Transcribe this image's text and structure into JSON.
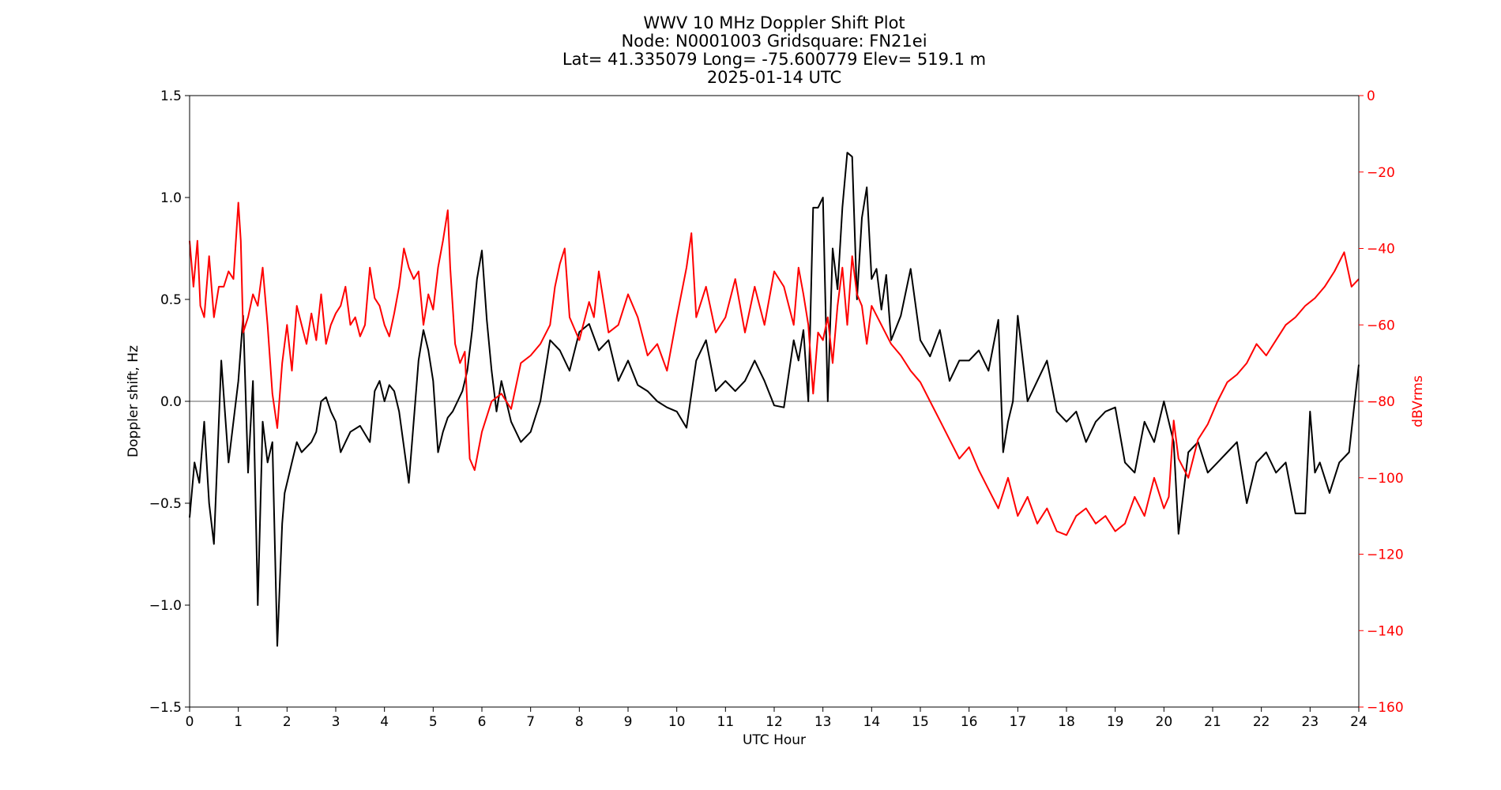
{
  "chart_data": {
    "type": "line",
    "title_lines": [
      "WWV 10 MHz Doppler Shift Plot",
      "Node:  N0001003     Gridsquare:  FN21ei",
      "Lat= 41.335079    Long= -75.600779    Elev= 519.1 m",
      "2025-01-14  UTC"
    ],
    "xlabel": "UTC Hour",
    "ylabel": "Doppler shift, Hz",
    "y2label": "dBVrms",
    "xlim": [
      0,
      24
    ],
    "ylim": [
      -1.5,
      1.5
    ],
    "y2lim": [
      -160,
      0
    ],
    "xticks": [
      0,
      1,
      2,
      3,
      4,
      5,
      6,
      7,
      8,
      9,
      10,
      11,
      12,
      13,
      14,
      15,
      16,
      17,
      18,
      19,
      20,
      21,
      22,
      23,
      24
    ],
    "yticks": [
      -1.5,
      -1.0,
      -0.5,
      0.0,
      0.5,
      1.0,
      1.5
    ],
    "yticklabels": [
      "−1.5",
      "−1.0",
      "−0.5",
      "0.0",
      "0.5",
      "1.0",
      "1.5"
    ],
    "y2ticks": [
      0,
      -20,
      -40,
      -60,
      -80,
      -100,
      -120,
      -140,
      -160
    ],
    "y2ticklabels": [
      "0",
      "−20",
      "−40",
      "−60",
      "−80",
      "−100",
      "−120",
      "−140",
      "−160"
    ],
    "zero_line": true,
    "grid": false,
    "colors": {
      "doppler": "#000000",
      "power": "#ff0000",
      "zero_line": "#808080"
    },
    "series": [
      {
        "axis": "left",
        "color": "#000000",
        "x": [
          0,
          0.1,
          0.2,
          0.3,
          0.4,
          0.5,
          0.55,
          0.65,
          0.8,
          0.9,
          1.0,
          1.1,
          1.2,
          1.3,
          1.4,
          1.5,
          1.6,
          1.7,
          1.8,
          1.9,
          1.95,
          2.1,
          2.2,
          2.3,
          2.5,
          2.6,
          2.7,
          2.8,
          2.9,
          3.0,
          3.1,
          3.2,
          3.3,
          3.5,
          3.7,
          3.8,
          3.9,
          4.0,
          4.1,
          4.2,
          4.3,
          4.5,
          4.7,
          4.8,
          4.9,
          5.0,
          5.1,
          5.2,
          5.3,
          5.4,
          5.5,
          5.6,
          5.7,
          5.8,
          5.9,
          6.0,
          6.1,
          6.2,
          6.3,
          6.4,
          6.6,
          6.8,
          7.0,
          7.2,
          7.3,
          7.4,
          7.6,
          7.8,
          8.0,
          8.2,
          8.4,
          8.6,
          8.8,
          9.0,
          9.2,
          9.4,
          9.6,
          9.8,
          10.0,
          10.2,
          10.4,
          10.6,
          10.8,
          11.0,
          11.2,
          11.4,
          11.6,
          11.8,
          12.0,
          12.2,
          12.4,
          12.5,
          12.6,
          12.7,
          12.8,
          12.9,
          13.0,
          13.1,
          13.2,
          13.3,
          13.4,
          13.5,
          13.6,
          13.7,
          13.8,
          13.9,
          14.0,
          14.1,
          14.2,
          14.3,
          14.4,
          14.6,
          14.8,
          15.0,
          15.2,
          15.4,
          15.6,
          15.8,
          16.0,
          16.2,
          16.4,
          16.6,
          16.7,
          16.8,
          16.9,
          17.0,
          17.2,
          17.4,
          17.6,
          17.8,
          18.0,
          18.2,
          18.4,
          18.6,
          18.8,
          19.0,
          19.2,
          19.4,
          19.6,
          19.8,
          20.0,
          20.1,
          20.2,
          20.3,
          20.5,
          20.7,
          20.9,
          21.1,
          21.3,
          21.5,
          21.7,
          21.9,
          22.1,
          22.3,
          22.5,
          22.7,
          22.9,
          23.0,
          23.1,
          23.2,
          23.4,
          23.6,
          23.8,
          24.0
        ],
        "values": [
          -0.57,
          -0.3,
          -0.4,
          -0.1,
          -0.5,
          -0.7,
          -0.4,
          0.2,
          -0.3,
          -0.1,
          0.1,
          0.42,
          -0.35,
          0.1,
          -1.0,
          -0.1,
          -0.3,
          -0.2,
          -1.2,
          -0.6,
          -0.45,
          -0.3,
          -0.2,
          -0.25,
          -0.2,
          -0.15,
          0.0,
          0.02,
          -0.05,
          -0.1,
          -0.25,
          -0.2,
          -0.15,
          -0.12,
          -0.2,
          0.05,
          0.1,
          0.0,
          0.08,
          0.05,
          -0.05,
          -0.4,
          0.2,
          0.35,
          0.25,
          0.1,
          -0.25,
          -0.15,
          -0.08,
          -0.05,
          0.0,
          0.05,
          0.15,
          0.35,
          0.6,
          0.74,
          0.4,
          0.15,
          -0.05,
          0.1,
          -0.1,
          -0.2,
          -0.15,
          0.0,
          0.15,
          0.3,
          0.25,
          0.15,
          0.34,
          0.38,
          0.25,
          0.3,
          0.1,
          0.2,
          0.08,
          0.05,
          0.0,
          -0.03,
          -0.05,
          -0.13,
          0.2,
          0.3,
          0.05,
          0.1,
          0.05,
          0.1,
          0.2,
          0.1,
          -0.02,
          -0.03,
          0.3,
          0.2,
          0.35,
          0.0,
          0.95,
          0.95,
          1.0,
          0.0,
          0.75,
          0.55,
          0.95,
          1.22,
          1.2,
          0.5,
          0.9,
          1.05,
          0.6,
          0.65,
          0.45,
          0.62,
          0.3,
          0.42,
          0.65,
          0.3,
          0.22,
          0.35,
          0.1,
          0.2,
          0.2,
          0.25,
          0.15,
          0.4,
          -0.25,
          -0.1,
          0.0,
          0.42,
          0.0,
          0.1,
          0.2,
          -0.05,
          -0.1,
          -0.05,
          -0.2,
          -0.1,
          -0.05,
          -0.03,
          -0.3,
          -0.35,
          -0.1,
          -0.2,
          0.0,
          -0.1,
          -0.2,
          -0.65,
          -0.25,
          -0.2,
          -0.35,
          -0.3,
          -0.25,
          -0.2,
          -0.5,
          -0.3,
          -0.25,
          -0.35,
          -0.3,
          -0.55,
          -0.55,
          -0.05,
          -0.35,
          -0.3,
          -0.45,
          -0.3,
          -0.25,
          0.18
        ]
      },
      {
        "axis": "right",
        "color": "#ff0000",
        "x": [
          0,
          0.08,
          0.16,
          0.22,
          0.3,
          0.4,
          0.5,
          0.6,
          0.7,
          0.8,
          0.9,
          1.0,
          1.05,
          1.1,
          1.2,
          1.3,
          1.4,
          1.5,
          1.6,
          1.7,
          1.8,
          1.9,
          2.0,
          2.1,
          2.2,
          2.3,
          2.4,
          2.5,
          2.6,
          2.7,
          2.8,
          2.9,
          3.0,
          3.1,
          3.2,
          3.3,
          3.4,
          3.5,
          3.6,
          3.7,
          3.8,
          3.9,
          4.0,
          4.1,
          4.2,
          4.3,
          4.4,
          4.5,
          4.6,
          4.7,
          4.8,
          4.9,
          5.0,
          5.1,
          5.2,
          5.3,
          5.35,
          5.45,
          5.55,
          5.65,
          5.75,
          5.85,
          6.0,
          6.2,
          6.4,
          6.6,
          6.8,
          7.0,
          7.2,
          7.4,
          7.5,
          7.6,
          7.7,
          7.8,
          8.0,
          8.2,
          8.3,
          8.4,
          8.6,
          8.8,
          9.0,
          9.2,
          9.4,
          9.6,
          9.8,
          10.0,
          10.2,
          10.3,
          10.4,
          10.6,
          10.8,
          11.0,
          11.2,
          11.4,
          11.6,
          11.8,
          12.0,
          12.2,
          12.4,
          12.5,
          12.6,
          12.7,
          12.8,
          12.9,
          13.0,
          13.1,
          13.2,
          13.3,
          13.4,
          13.5,
          13.6,
          13.7,
          13.8,
          13.9,
          14.0,
          14.2,
          14.4,
          14.6,
          14.8,
          15.0,
          15.2,
          15.4,
          15.6,
          15.8,
          16.0,
          16.2,
          16.4,
          16.6,
          16.8,
          17.0,
          17.2,
          17.4,
          17.6,
          17.8,
          18.0,
          18.2,
          18.4,
          18.6,
          18.8,
          19.0,
          19.2,
          19.4,
          19.6,
          19.8,
          20.0,
          20.1,
          20.2,
          20.3,
          20.5,
          20.7,
          20.9,
          21.1,
          21.3,
          21.5,
          21.7,
          21.9,
          22.1,
          22.3,
          22.5,
          22.7,
          22.9,
          23.1,
          23.3,
          23.5,
          23.7,
          23.85,
          24.0
        ],
        "values": [
          -38,
          -50,
          -38,
          -55,
          -58,
          -42,
          -58,
          -50,
          -50,
          -46,
          -48,
          -28,
          -38,
          -62,
          -58,
          -52,
          -55,
          -45,
          -60,
          -78,
          -87,
          -70,
          -60,
          -72,
          -55,
          -60,
          -65,
          -57,
          -64,
          -52,
          -65,
          -60,
          -57,
          -55,
          -50,
          -60,
          -58,
          -63,
          -60,
          -45,
          -53,
          -55,
          -60,
          -63,
          -57,
          -50,
          -40,
          -45,
          -48,
          -46,
          -60,
          -52,
          -56,
          -45,
          -38,
          -30,
          -45,
          -65,
          -70,
          -67,
          -95,
          -98,
          -88,
          -80,
          -78,
          -82,
          -70,
          -68,
          -65,
          -60,
          -50,
          -44,
          -40,
          -58,
          -64,
          -54,
          -58,
          -46,
          -62,
          -60,
          -52,
          -58,
          -68,
          -65,
          -72,
          -58,
          -45,
          -36,
          -58,
          -50,
          -62,
          -58,
          -48,
          -62,
          -50,
          -60,
          -46,
          -50,
          -60,
          -45,
          -52,
          -60,
          -78,
          -62,
          -64,
          -58,
          -70,
          -55,
          -45,
          -60,
          -42,
          -52,
          -55,
          -65,
          -55,
          -60,
          -65,
          -68,
          -72,
          -75,
          -80,
          -85,
          -90,
          -95,
          -92,
          -98,
          -103,
          -108,
          -100,
          -110,
          -105,
          -112,
          -108,
          -114,
          -115,
          -110,
          -108,
          -112,
          -110,
          -114,
          -112,
          -105,
          -110,
          -100,
          -108,
          -105,
          -85,
          -95,
          -100,
          -90,
          -86,
          -80,
          -75,
          -73,
          -70,
          -65,
          -68,
          -64,
          -60,
          -58,
          -55,
          -53,
          -50,
          -46,
          -41,
          -50,
          -48
        ]
      }
    ]
  }
}
